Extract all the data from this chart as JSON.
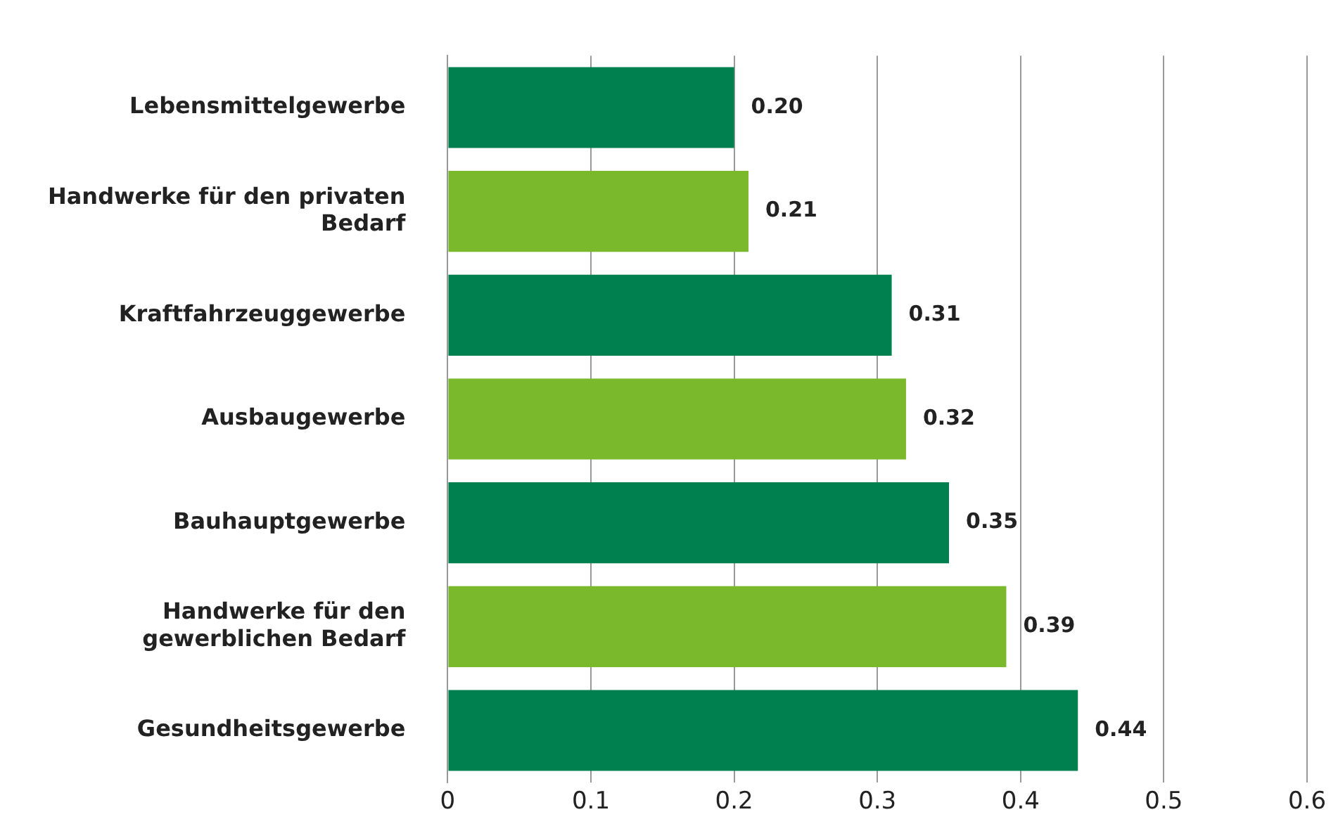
{
  "chart_data": {
    "type": "bar",
    "orientation": "horizontal",
    "categories": [
      "Lebensmittelgewerbe",
      "Handwerke für den privaten Bedarf",
      "Kraftfahrzeuggewerbe",
      "Ausbaugewerbe",
      "Bauhauptgewerbe",
      "Handwerke für den gewerblichen Bedarf",
      "Gesundheitsgewerbe"
    ],
    "values": [
      0.2,
      0.21,
      0.31,
      0.32,
      0.35,
      0.39,
      0.44
    ],
    "value_labels": [
      "0.20",
      "0.21",
      "0.31",
      "0.32",
      "0.35",
      "0.39",
      "0.44"
    ],
    "colors": [
      "#00804f",
      "#7ab82c",
      "#00804f",
      "#7ab82c",
      "#00804f",
      "#7ab82c",
      "#00804f"
    ],
    "xlim": [
      0,
      0.6
    ],
    "xticks": [
      0,
      0.1,
      0.2,
      0.3,
      0.4,
      0.5,
      0.6
    ],
    "grid": "x",
    "legend": false
  }
}
